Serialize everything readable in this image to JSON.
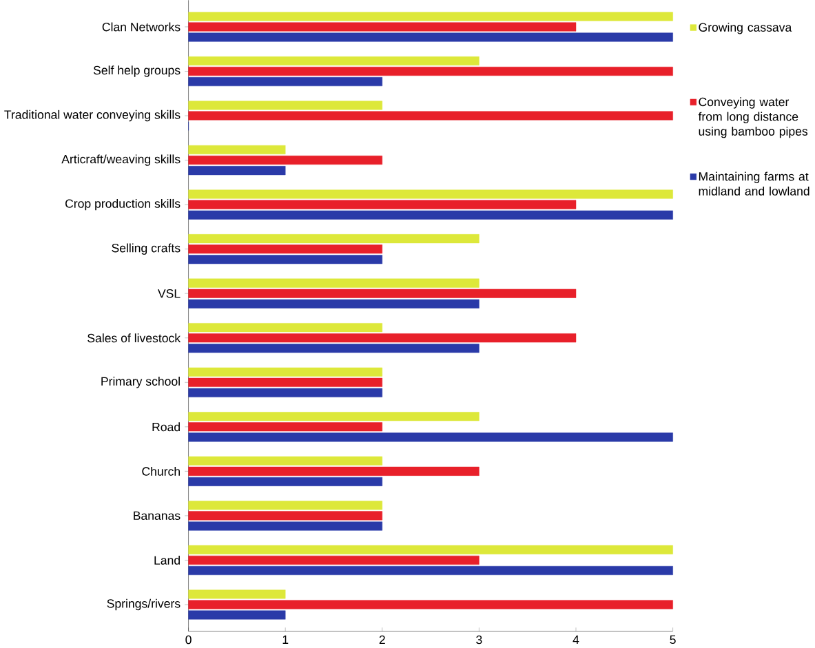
{
  "chart_data": {
    "type": "bar",
    "orientation": "horizontal",
    "categories": [
      "Clan Networks",
      "Self help groups",
      "Traditional water conveying skills",
      "Articraft/weaving skills",
      "Crop production skills",
      "Selling crafts",
      "VSL",
      "Sales of livestock",
      "Primary school",
      "Road",
      "Church",
      "Bananas",
      "Land",
      "Springs/rivers"
    ],
    "series": [
      {
        "name": "Growing cassava",
        "color": "#dde83a",
        "values": [
          5,
          3,
          2,
          1,
          5,
          3,
          3,
          2,
          2,
          3,
          2,
          2,
          5,
          1
        ]
      },
      {
        "name": "Conveying water from long distance using bamboo pipes",
        "color": "#e8202a",
        "values": [
          4,
          5,
          5,
          2,
          4,
          2,
          4,
          4,
          2,
          2,
          3,
          2,
          3,
          5
        ]
      },
      {
        "name": "Maintaining farms at midland and lowland",
        "color": "#2a3aa8",
        "values": [
          5,
          2,
          0,
          1,
          5,
          2,
          3,
          3,
          2,
          5,
          2,
          2,
          5,
          1
        ]
      }
    ],
    "xlim": [
      0,
      5
    ],
    "xticks": [
      0,
      1,
      2,
      3,
      4,
      5
    ],
    "legend": "right"
  }
}
